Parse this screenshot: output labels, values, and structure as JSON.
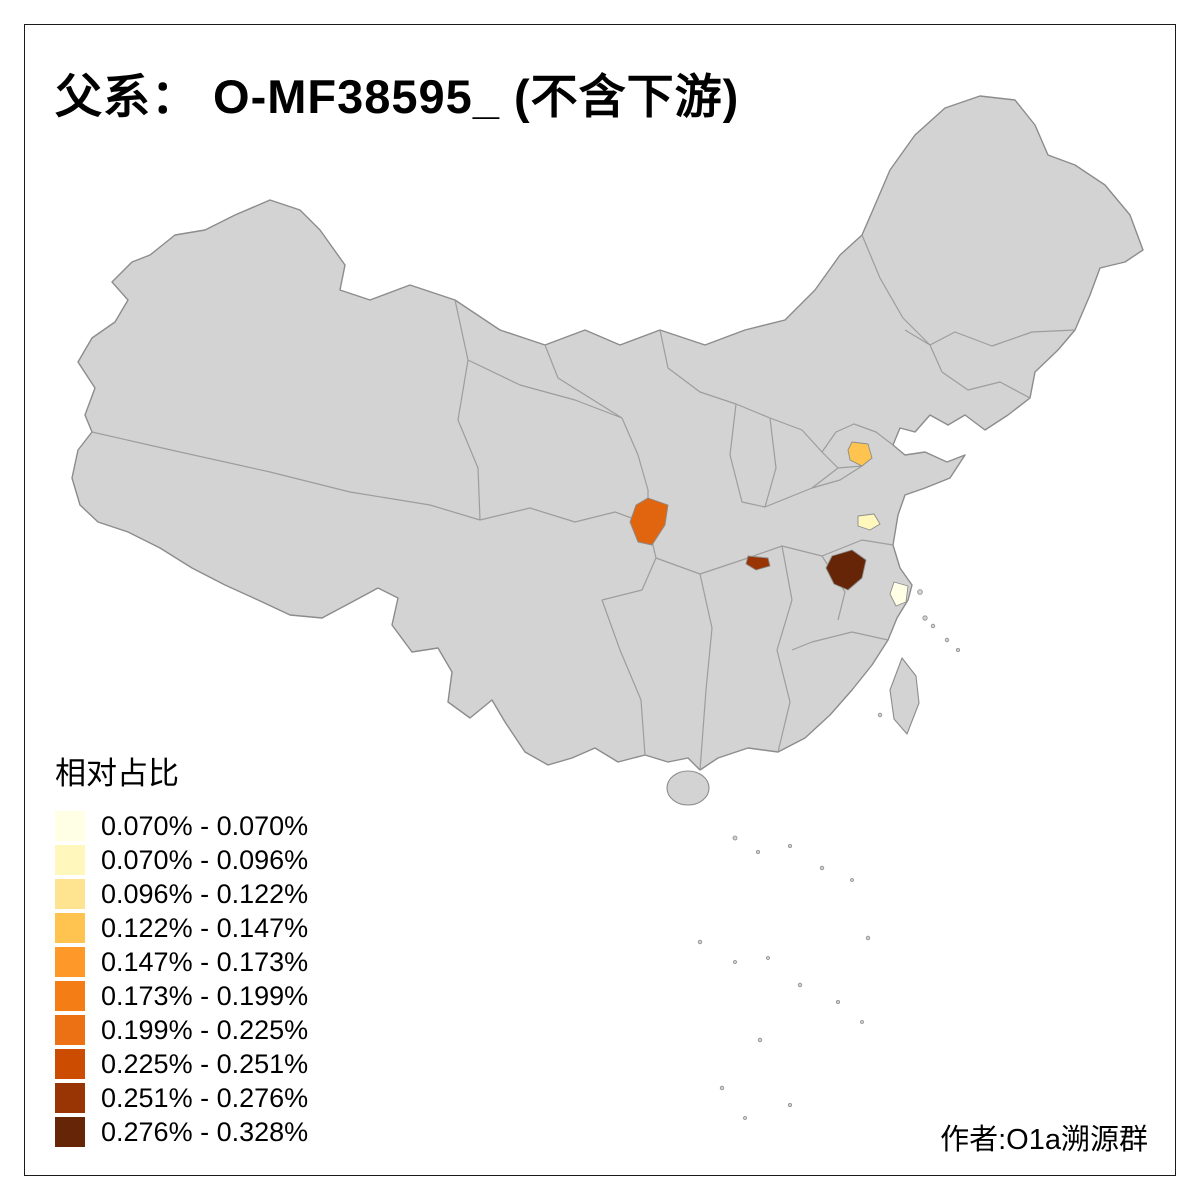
{
  "title": "父系： O-MF38595_ (不含下游)",
  "legend": {
    "title": "相对占比",
    "items": [
      {
        "label": "0.070% - 0.070%",
        "color": "#FFFFE5"
      },
      {
        "label": "0.070% - 0.096%",
        "color": "#FFF7BC"
      },
      {
        "label": "0.096% - 0.122%",
        "color": "#FEE391"
      },
      {
        "label": "0.122% - 0.147%",
        "color": "#FEC44F"
      },
      {
        "label": "0.147% - 0.173%",
        "color": "#FE9929"
      },
      {
        "label": "0.173% - 0.199%",
        "color": "#F57D15"
      },
      {
        "label": "0.199% - 0.225%",
        "color": "#EC7014"
      },
      {
        "label": "0.225% - 0.251%",
        "color": "#CC4C02"
      },
      {
        "label": "0.251% - 0.276%",
        "color": "#993404"
      },
      {
        "label": "0.276% - 0.328%",
        "color": "#662506"
      }
    ]
  },
  "author": "作者:O1a溯源群",
  "map": {
    "base_fill": "#D3D3D3",
    "border_color": "#8C8C8C",
    "highlighted_regions": [
      {
        "name": "shandong",
        "color": "#FEC44F"
      },
      {
        "name": "jiangsu",
        "color": "#FFF7BC"
      },
      {
        "name": "shanghai-coast",
        "color": "#FFFFE5"
      },
      {
        "name": "sichuan-northeast",
        "color": "#E1640E"
      },
      {
        "name": "hubei-west",
        "color": "#993404"
      },
      {
        "name": "anhui-south",
        "color": "#662506"
      }
    ]
  }
}
